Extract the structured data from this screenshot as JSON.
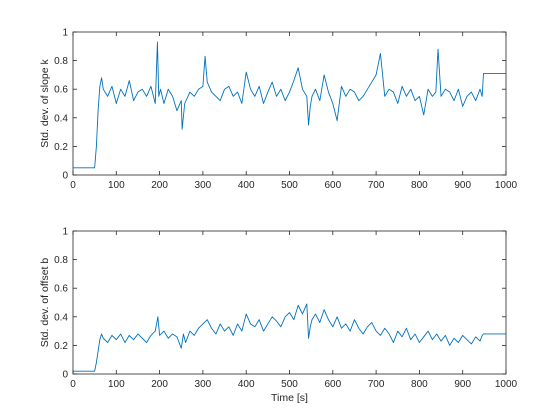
{
  "figure": {
    "background": "#ffffff",
    "axis_color": "#262626",
    "line_color": "#0072bd"
  },
  "chart_data": [
    {
      "type": "line",
      "title": "",
      "xlabel": "",
      "ylabel": "Std. dev. of slope k",
      "xlim": [
        0,
        1000
      ],
      "ylim": [
        0,
        1
      ],
      "xticks": [
        0,
        100,
        200,
        300,
        400,
        500,
        600,
        700,
        800,
        900,
        1000
      ],
      "yticks": [
        0,
        0.2,
        0.4,
        0.6,
        0.8,
        1
      ],
      "xtick_labels": [
        "0",
        "100",
        "200",
        "300",
        "400",
        "500",
        "600",
        "700",
        "800",
        "900",
        "1000"
      ],
      "ytick_labels": [
        "0",
        "0.2",
        "0.4",
        "0.6",
        "0.8",
        "1"
      ],
      "grid": false,
      "legend": null,
      "series": [
        {
          "color": "#0072bd",
          "x": [
            0,
            50,
            54,
            58,
            62,
            66,
            70,
            80,
            90,
            100,
            110,
            120,
            130,
            140,
            150,
            160,
            170,
            180,
            190,
            195,
            198,
            202,
            210,
            220,
            230,
            240,
            250,
            252,
            258,
            270,
            280,
            290,
            300,
            305,
            310,
            320,
            330,
            340,
            350,
            360,
            370,
            380,
            390,
            400,
            410,
            420,
            430,
            440,
            450,
            460,
            470,
            480,
            490,
            500,
            510,
            520,
            530,
            540,
            544,
            548,
            552,
            560,
            570,
            580,
            590,
            600,
            610,
            620,
            630,
            640,
            650,
            660,
            670,
            680,
            690,
            700,
            710,
            720,
            730,
            740,
            750,
            760,
            770,
            780,
            790,
            800,
            810,
            820,
            830,
            838,
            843,
            850,
            860,
            870,
            880,
            890,
            900,
            910,
            920,
            930,
            940,
            945,
            948,
            950,
            1000
          ],
          "y": [
            0.05,
            0.05,
            0.2,
            0.45,
            0.62,
            0.68,
            0.6,
            0.55,
            0.62,
            0.5,
            0.6,
            0.55,
            0.66,
            0.52,
            0.58,
            0.6,
            0.55,
            0.62,
            0.5,
            0.93,
            0.55,
            0.6,
            0.5,
            0.6,
            0.55,
            0.45,
            0.52,
            0.32,
            0.5,
            0.58,
            0.55,
            0.6,
            0.62,
            0.83,
            0.65,
            0.58,
            0.55,
            0.52,
            0.6,
            0.62,
            0.55,
            0.58,
            0.5,
            0.72,
            0.6,
            0.55,
            0.62,
            0.5,
            0.58,
            0.65,
            0.55,
            0.6,
            0.52,
            0.58,
            0.66,
            0.75,
            0.6,
            0.55,
            0.35,
            0.48,
            0.55,
            0.6,
            0.52,
            0.7,
            0.58,
            0.5,
            0.38,
            0.62,
            0.55,
            0.6,
            0.58,
            0.52,
            0.55,
            0.6,
            0.65,
            0.7,
            0.85,
            0.55,
            0.6,
            0.58,
            0.5,
            0.62,
            0.55,
            0.6,
            0.52,
            0.55,
            0.42,
            0.6,
            0.55,
            0.58,
            0.88,
            0.55,
            0.6,
            0.58,
            0.52,
            0.6,
            0.48,
            0.55,
            0.58,
            0.52,
            0.6,
            0.55,
            0.71,
            0.71,
            0.71
          ]
        }
      ]
    },
    {
      "type": "line",
      "title": "",
      "xlabel": "Time [s]",
      "ylabel": "Std. dev. of offset b",
      "xlim": [
        0,
        1000
      ],
      "ylim": [
        0,
        1
      ],
      "xticks": [
        0,
        100,
        200,
        300,
        400,
        500,
        600,
        700,
        800,
        900,
        1000
      ],
      "yticks": [
        0,
        0.2,
        0.4,
        0.6,
        0.8,
        1
      ],
      "xtick_labels": [
        "0",
        "100",
        "200",
        "300",
        "400",
        "500",
        "600",
        "700",
        "800",
        "900",
        "1000"
      ],
      "ytick_labels": [
        "0",
        "0.2",
        "0.4",
        "0.6",
        "0.8",
        "1"
      ],
      "grid": false,
      "legend": null,
      "series": [
        {
          "color": "#0072bd",
          "x": [
            0,
            50,
            54,
            58,
            62,
            66,
            70,
            80,
            90,
            100,
            110,
            120,
            130,
            140,
            150,
            160,
            170,
            180,
            190,
            196,
            200,
            210,
            220,
            230,
            240,
            250,
            255,
            260,
            270,
            280,
            290,
            300,
            310,
            320,
            330,
            340,
            350,
            360,
            370,
            380,
            390,
            400,
            410,
            420,
            430,
            440,
            450,
            460,
            470,
            480,
            490,
            500,
            510,
            520,
            530,
            540,
            544,
            548,
            552,
            560,
            570,
            580,
            590,
            600,
            610,
            620,
            630,
            640,
            650,
            660,
            670,
            680,
            690,
            700,
            710,
            720,
            730,
            740,
            750,
            760,
            770,
            780,
            790,
            800,
            810,
            820,
            830,
            840,
            850,
            860,
            870,
            880,
            890,
            900,
            910,
            920,
            930,
            940,
            945,
            948,
            950,
            1000
          ],
          "y": [
            0.02,
            0.02,
            0.08,
            0.16,
            0.24,
            0.28,
            0.25,
            0.22,
            0.27,
            0.24,
            0.28,
            0.22,
            0.27,
            0.24,
            0.28,
            0.25,
            0.22,
            0.27,
            0.3,
            0.4,
            0.27,
            0.3,
            0.25,
            0.28,
            0.26,
            0.18,
            0.28,
            0.22,
            0.3,
            0.27,
            0.32,
            0.35,
            0.38,
            0.32,
            0.28,
            0.35,
            0.3,
            0.33,
            0.27,
            0.35,
            0.3,
            0.42,
            0.35,
            0.33,
            0.38,
            0.3,
            0.35,
            0.4,
            0.37,
            0.33,
            0.4,
            0.43,
            0.38,
            0.48,
            0.42,
            0.49,
            0.25,
            0.33,
            0.38,
            0.42,
            0.36,
            0.45,
            0.38,
            0.33,
            0.4,
            0.32,
            0.35,
            0.3,
            0.38,
            0.32,
            0.28,
            0.33,
            0.36,
            0.3,
            0.27,
            0.32,
            0.28,
            0.22,
            0.3,
            0.26,
            0.32,
            0.24,
            0.28,
            0.22,
            0.26,
            0.3,
            0.24,
            0.28,
            0.23,
            0.27,
            0.2,
            0.25,
            0.22,
            0.27,
            0.24,
            0.21,
            0.26,
            0.23,
            0.27,
            0.28,
            0.28,
            0.28
          ]
        }
      ]
    }
  ]
}
